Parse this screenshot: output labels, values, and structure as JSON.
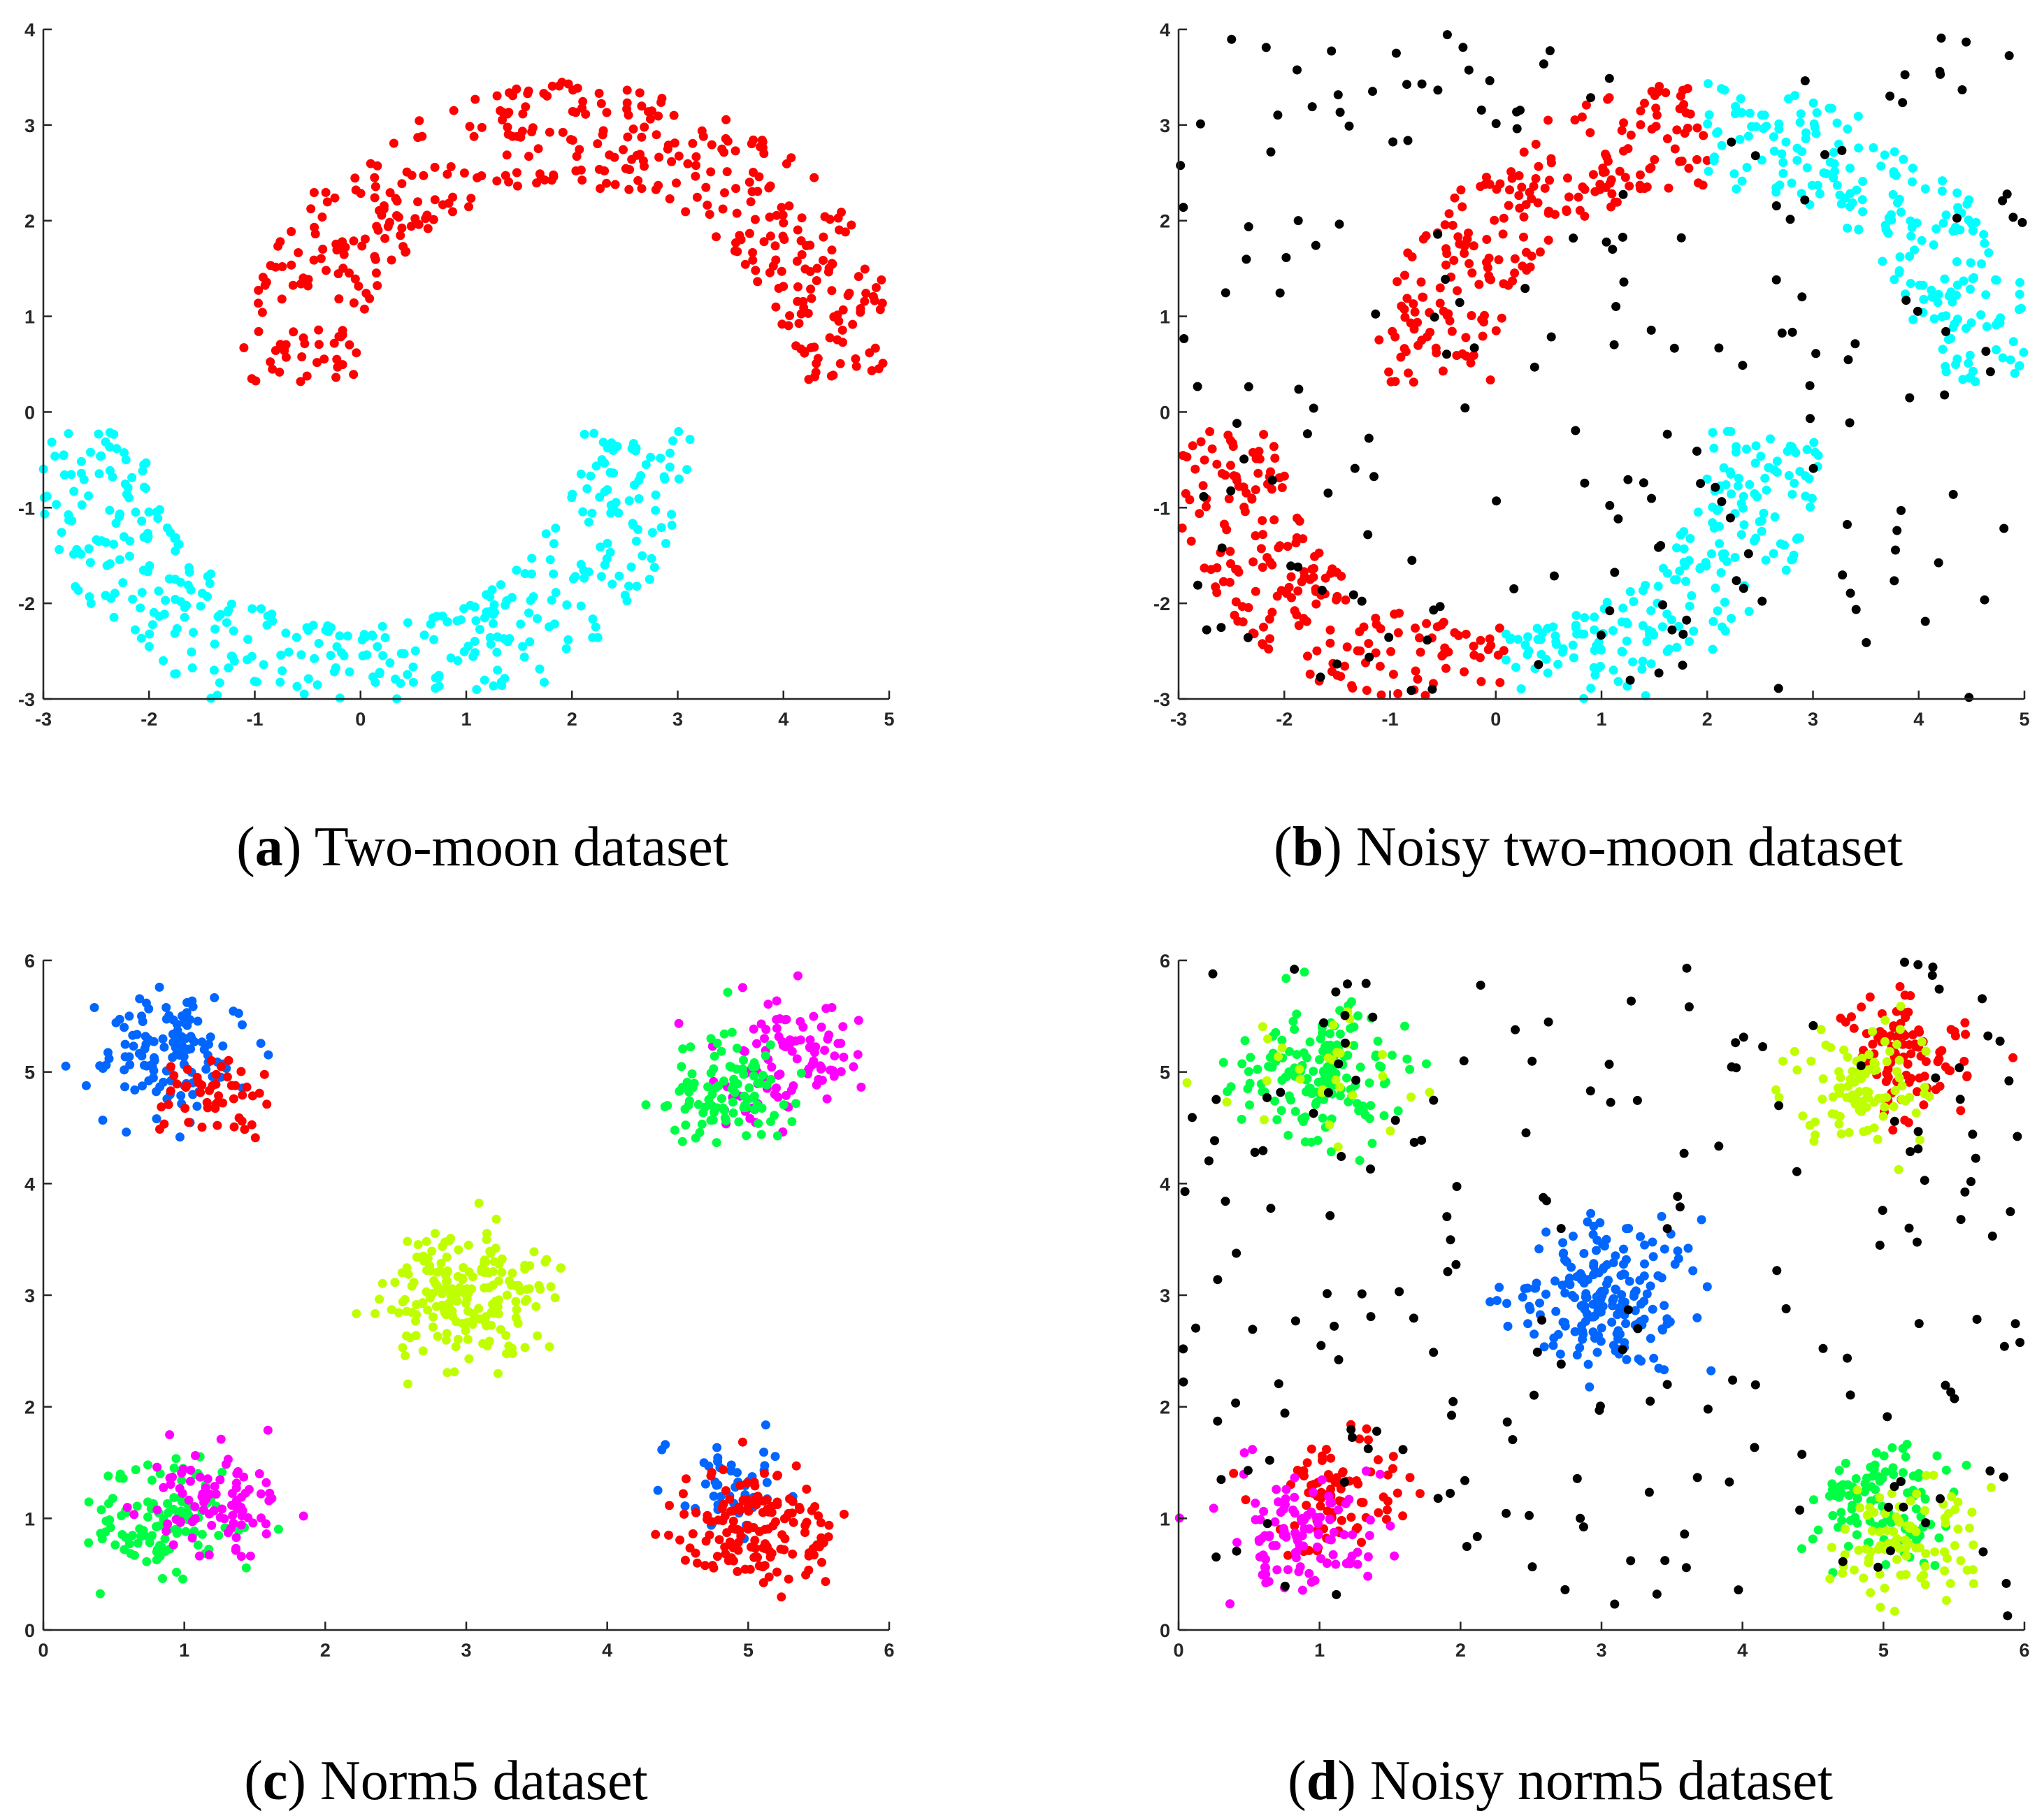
{
  "figure": {
    "panels": [
      {
        "id": "a",
        "caption_letter": "a",
        "caption_text": "Two-moon dataset",
        "chart_data": {
          "type": "scatter",
          "title": "",
          "xlabel": "",
          "ylabel": "",
          "xlim": [
            -3,
            5
          ],
          "ylim": [
            -3,
            4
          ],
          "xticks": [
            -3,
            -2,
            -1,
            0,
            1,
            2,
            3,
            4,
            5
          ],
          "yticks": [
            -3,
            -2,
            -1,
            0,
            1,
            2,
            3,
            4
          ],
          "series": [
            {
              "name": "upper moon (cluster 1)",
              "color": "#ff0000",
              "shape": "arc",
              "center": [
                2,
                0.3
              ],
              "radius": 2.6,
              "thickness": 0.55,
              "angle_range_deg": [
                0,
                180
              ],
              "points": 420
            },
            {
              "name": "lower moon (cluster 2)",
              "color": "#00ffff",
              "shape": "arc",
              "center": [
                0,
                -0.2
              ],
              "radius": 2.6,
              "thickness": 0.55,
              "angle_range_deg": [
                180,
                360
              ],
              "points": 420
            }
          ]
        }
      },
      {
        "id": "b",
        "caption_letter": "b",
        "caption_text": "Noisy two-moon dataset",
        "chart_data": {
          "type": "scatter",
          "title": "",
          "xlabel": "",
          "ylabel": "",
          "xlim": [
            -3,
            5
          ],
          "ylim": [
            -3,
            4
          ],
          "xticks": [
            -3,
            -2,
            -1,
            0,
            1,
            2,
            3,
            4,
            5
          ],
          "yticks": [
            -3,
            -2,
            -1,
            0,
            1,
            2,
            3,
            4
          ],
          "series": [
            {
              "name": "cluster red (upper-left arc)",
              "color": "#ff0000",
              "shape": "arc",
              "center": [
                2,
                0.3
              ],
              "radius": 2.6,
              "thickness": 0.55,
              "angle_range_deg": [
                90,
                180
              ],
              "points": 220
            },
            {
              "name": "cluster red (lower-left arc)",
              "color": "#ff0000",
              "shape": "arc",
              "center": [
                0,
                -0.2
              ],
              "radius": 2.6,
              "thickness": 0.55,
              "angle_range_deg": [
                180,
                272
              ],
              "points": 220
            },
            {
              "name": "cluster cyan (upper-right arc)",
              "color": "#00ffff",
              "shape": "arc",
              "center": [
                2,
                0.3
              ],
              "radius": 2.6,
              "thickness": 0.55,
              "angle_range_deg": [
                0,
                90
              ],
              "points": 220
            },
            {
              "name": "cluster cyan (lower-right arc)",
              "color": "#00ffff",
              "shape": "arc",
              "center": [
                0,
                -0.2
              ],
              "radius": 2.6,
              "thickness": 0.55,
              "angle_range_deg": [
                272,
                360
              ],
              "points": 220
            },
            {
              "name": "noise",
              "color": "#000000",
              "shape": "uniform",
              "x_range": [
                -3,
                5
              ],
              "y_range": [
                -3,
                4
              ],
              "points": 190
            }
          ]
        }
      },
      {
        "id": "c",
        "caption_letter": "c",
        "caption_text": "Norm5 dataset",
        "chart_data": {
          "type": "scatter",
          "title": "",
          "xlabel": "",
          "ylabel": "",
          "xlim": [
            0,
            6
          ],
          "ylim": [
            0,
            6
          ],
          "xticks": [
            0,
            1,
            2,
            3,
            4,
            5,
            6
          ],
          "yticks": [
            0,
            1,
            2,
            3,
            4,
            5,
            6
          ],
          "series": [
            {
              "name": "blue (top-left)",
              "color": "#0066ff",
              "shape": "gauss",
              "center": [
                0.9,
                5.15
              ],
              "sigma": 0.26,
              "points": 130
            },
            {
              "name": "red (top-left)",
              "color": "#ff0000",
              "shape": "gauss",
              "center": [
                1.2,
                4.75
              ],
              "sigma": 0.2,
              "points": 50
            },
            {
              "name": "magenta (top-right)",
              "color": "#ff00ff",
              "shape": "gauss",
              "center": [
                5.3,
                5.15
              ],
              "sigma": 0.27,
              "points": 100
            },
            {
              "name": "green (top-right)",
              "color": "#00ff44",
              "shape": "gauss",
              "center": [
                4.85,
                4.85
              ],
              "sigma": 0.24,
              "points": 100
            },
            {
              "name": "yellow-green (center)",
              "color": "#bfff00",
              "shape": "gauss",
              "center": [
                3.0,
                3.0
              ],
              "sigma": 0.3,
              "points": 200
            },
            {
              "name": "green (bottom-left)",
              "color": "#00ff44",
              "shape": "gauss",
              "center": [
                0.85,
                0.95
              ],
              "sigma": 0.25,
              "points": 110
            },
            {
              "name": "magenta (bottom-left)",
              "color": "#ff00ff",
              "shape": "gauss",
              "center": [
                1.2,
                1.15
              ],
              "sigma": 0.24,
              "points": 90
            },
            {
              "name": "blue (bottom-right)",
              "color": "#0066ff",
              "shape": "gauss",
              "center": [
                4.85,
                1.3
              ],
              "sigma": 0.22,
              "points": 50
            },
            {
              "name": "red (bottom-right)",
              "color": "#ff0000",
              "shape": "gauss",
              "center": [
                5.05,
                0.9
              ],
              "sigma": 0.28,
              "points": 150
            }
          ]
        }
      },
      {
        "id": "d",
        "caption_letter": "d",
        "caption_text": "Noisy norm5 dataset",
        "chart_data": {
          "type": "scatter",
          "title": "",
          "xlabel": "",
          "ylabel": "",
          "xlim": [
            0,
            6
          ],
          "ylim": [
            0,
            6
          ],
          "xticks": [
            0,
            1,
            2,
            3,
            4,
            5,
            6
          ],
          "yticks": [
            0,
            1,
            2,
            3,
            4,
            5,
            6
          ],
          "series": [
            {
              "name": "green (top-left)",
              "color": "#00ff44",
              "shape": "gauss",
              "center": [
                1.0,
                5.0
              ],
              "sigma": 0.28,
              "points": 160
            },
            {
              "name": "yellow-green (top-left)",
              "color": "#bfff00",
              "shape": "gauss",
              "center": [
                1.0,
                5.0
              ],
              "sigma": 0.32,
              "points": 30
            },
            {
              "name": "red (top-right)",
              "color": "#ff0000",
              "shape": "gauss",
              "center": [
                5.15,
                5.1
              ],
              "sigma": 0.25,
              "points": 100
            },
            {
              "name": "yellow-green (top-right)",
              "color": "#bfff00",
              "shape": "gauss",
              "center": [
                4.85,
                4.85
              ],
              "sigma": 0.26,
              "points": 100
            },
            {
              "name": "blue (center)",
              "color": "#0066ff",
              "shape": "gauss",
              "center": [
                3.0,
                3.0
              ],
              "sigma": 0.3,
              "points": 200
            },
            {
              "name": "red (bottom-left)",
              "color": "#ff0000",
              "shape": "gauss",
              "center": [
                1.15,
                1.2
              ],
              "sigma": 0.25,
              "points": 90
            },
            {
              "name": "magenta (bottom-left)",
              "color": "#ff00ff",
              "shape": "gauss",
              "center": [
                0.85,
                0.9
              ],
              "sigma": 0.24,
              "points": 110
            },
            {
              "name": "green (bottom-right)",
              "color": "#00ff44",
              "shape": "gauss",
              "center": [
                4.95,
                1.1
              ],
              "sigma": 0.25,
              "points": 110
            },
            {
              "name": "yellow-green (bottom-right)",
              "color": "#bfff00",
              "shape": "gauss",
              "center": [
                5.15,
                0.85
              ],
              "sigma": 0.3,
              "points": 90
            },
            {
              "name": "noise",
              "color": "#000000",
              "shape": "uniform",
              "x_range": [
                0,
                6
              ],
              "y_range": [
                0,
                6
              ],
              "points": 200
            }
          ]
        }
      }
    ]
  }
}
